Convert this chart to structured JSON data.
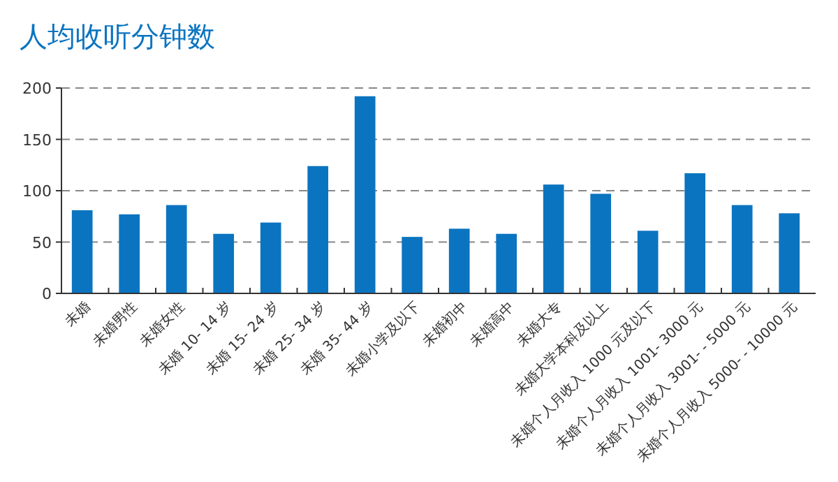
{
  "chart_data": {
    "type": "bar",
    "title": "人均收听分钟数",
    "categories": [
      "未婚",
      "未婚男性",
      "未婚女性",
      "未婚 10- 14 岁",
      "未婚 15- 24 岁",
      "未婚 25- 34 岁",
      "未婚 35- 44 岁",
      "未婚小学及以下",
      "未婚初中",
      "未婚高中",
      "未婚大专",
      "未婚大学本科及以上",
      "未婚个人月收入 1000 元及以下",
      "未婚个人月收入 1001- 3000 元",
      "未婚个人月收入 3001- - 5000 元",
      "未婚个人月收入 5000- - 10000 元"
    ],
    "values": [
      81,
      77,
      86,
      58,
      69,
      124,
      192,
      55,
      63,
      58,
      106,
      97,
      61,
      117,
      86,
      78
    ],
    "color": "#0b74c0",
    "ylim": [
      0,
      200
    ],
    "yticks": [
      0,
      50,
      100,
      150,
      200
    ],
    "grid": "y"
  }
}
